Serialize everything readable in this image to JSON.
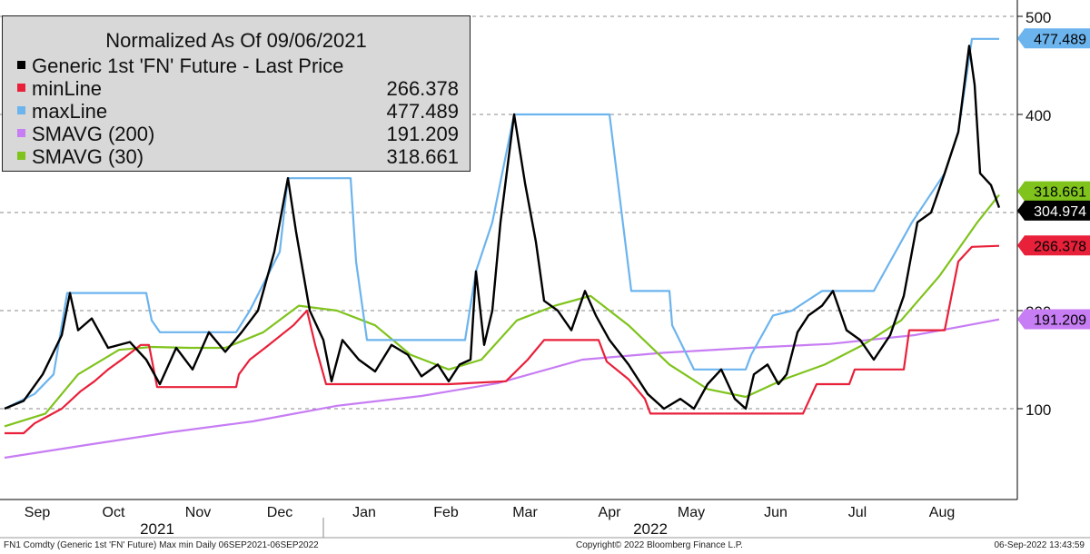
{
  "chart_data": {
    "type": "line",
    "title": "Normalized As Of 09/06/2021",
    "y_ticks": [
      100,
      200,
      300,
      400,
      500
    ],
    "ylim": [
      20,
      530
    ],
    "grid": "dashed horizontal",
    "legend_placement": "top-left",
    "x_month_labels": [
      "Sep",
      "Oct",
      "Nov",
      "Dec",
      "Jan",
      "Feb",
      "Mar",
      "Apr",
      "May",
      "Jun",
      "Jul",
      "Aug"
    ],
    "x_year_labels": [
      "2021",
      "2022"
    ],
    "x_start": "2021-09-06",
    "x_end": "2022-09-06",
    "series": [
      {
        "name": "Generic 1st 'FN' Future - Last Price",
        "last_value": "",
        "label_value": "304.974",
        "color": "#000000",
        "points": [
          [
            "2021-09-06",
            100
          ],
          [
            "2021-09-13",
            108
          ],
          [
            "2021-09-20",
            135
          ],
          [
            "2021-09-27",
            175
          ],
          [
            "2021-09-30",
            218
          ],
          [
            "2021-10-03",
            180
          ],
          [
            "2021-10-08",
            192
          ],
          [
            "2021-10-14",
            162
          ],
          [
            "2021-10-22",
            168
          ],
          [
            "2021-10-28",
            150
          ],
          [
            "2021-11-02",
            125
          ],
          [
            "2021-11-08",
            162
          ],
          [
            "2021-11-14",
            140
          ],
          [
            "2021-11-20",
            178
          ],
          [
            "2021-11-26",
            158
          ],
          [
            "2021-12-02",
            178
          ],
          [
            "2021-12-08",
            200
          ],
          [
            "2021-12-14",
            260
          ],
          [
            "2021-12-19",
            335
          ],
          [
            "2021-12-22",
            280
          ],
          [
            "2021-12-27",
            200
          ],
          [
            "2022-01-01",
            170
          ],
          [
            "2022-01-04",
            128
          ],
          [
            "2022-01-08",
            170
          ],
          [
            "2022-01-14",
            150
          ],
          [
            "2022-01-20",
            138
          ],
          [
            "2022-01-26",
            165
          ],
          [
            "2022-02-01",
            155
          ],
          [
            "2022-02-06",
            133
          ],
          [
            "2022-02-12",
            145
          ],
          [
            "2022-02-16",
            128
          ],
          [
            "2022-02-20",
            145
          ],
          [
            "2022-02-24",
            150
          ],
          [
            "2022-02-26",
            240
          ],
          [
            "2022-03-01",
            165
          ],
          [
            "2022-03-04",
            200
          ],
          [
            "2022-03-07",
            290
          ],
          [
            "2022-03-12",
            400
          ],
          [
            "2022-03-16",
            330
          ],
          [
            "2022-03-20",
            270
          ],
          [
            "2022-03-23",
            210
          ],
          [
            "2022-03-28",
            200
          ],
          [
            "2022-04-02",
            180
          ],
          [
            "2022-04-07",
            220
          ],
          [
            "2022-04-11",
            195
          ],
          [
            "2022-04-16",
            170
          ],
          [
            "2022-04-23",
            145
          ],
          [
            "2022-04-30",
            115
          ],
          [
            "2022-05-06",
            100
          ],
          [
            "2022-05-12",
            110
          ],
          [
            "2022-05-17",
            100
          ],
          [
            "2022-05-22",
            125
          ],
          [
            "2022-05-27",
            140
          ],
          [
            "2022-06-01",
            110
          ],
          [
            "2022-06-05",
            100
          ],
          [
            "2022-06-08",
            135
          ],
          [
            "2022-06-13",
            145
          ],
          [
            "2022-06-17",
            125
          ],
          [
            "2022-06-20",
            135
          ],
          [
            "2022-06-24",
            178
          ],
          [
            "2022-06-28",
            195
          ],
          [
            "2022-07-03",
            205
          ],
          [
            "2022-07-07",
            220
          ],
          [
            "2022-07-12",
            180
          ],
          [
            "2022-07-17",
            170
          ],
          [
            "2022-07-22",
            150
          ],
          [
            "2022-07-28",
            175
          ],
          [
            "2022-08-02",
            215
          ],
          [
            "2022-08-07",
            290
          ],
          [
            "2022-08-12",
            300
          ],
          [
            "2022-08-17",
            340
          ],
          [
            "2022-08-22",
            382
          ],
          [
            "2022-08-26",
            470
          ],
          [
            "2022-08-28",
            430
          ],
          [
            "2022-08-30",
            340
          ],
          [
            "2022-09-03",
            328
          ],
          [
            "2022-09-06",
            305
          ]
        ]
      },
      {
        "name": "minLine",
        "last_value": "266.378",
        "label_value": "266.378",
        "color": "#e8203a",
        "points": [
          [
            "2021-09-06",
            75
          ],
          [
            "2021-09-13",
            75
          ],
          [
            "2021-09-17",
            85
          ],
          [
            "2021-09-27",
            100
          ],
          [
            "2021-10-04",
            118
          ],
          [
            "2021-10-09",
            128
          ],
          [
            "2021-10-14",
            140
          ],
          [
            "2021-10-20",
            152
          ],
          [
            "2021-10-26",
            165
          ],
          [
            "2021-10-29",
            165
          ],
          [
            "2021-11-01",
            122
          ],
          [
            "2021-11-30",
            122
          ],
          [
            "2021-12-01",
            135
          ],
          [
            "2021-12-05",
            150
          ],
          [
            "2021-12-12",
            165
          ],
          [
            "2021-12-21",
            185
          ],
          [
            "2021-12-26",
            200
          ],
          [
            "2021-12-29",
            165
          ],
          [
            "2022-01-02",
            125
          ],
          [
            "2022-02-16",
            125
          ],
          [
            "2022-03-09",
            128
          ],
          [
            "2022-03-17",
            150
          ],
          [
            "2022-03-23",
            170
          ],
          [
            "2022-04-12",
            170
          ],
          [
            "2022-04-15",
            148
          ],
          [
            "2022-04-23",
            130
          ],
          [
            "2022-04-29",
            110
          ],
          [
            "2022-05-01",
            95
          ],
          [
            "2022-06-26",
            95
          ],
          [
            "2022-07-01",
            125
          ],
          [
            "2022-07-13",
            125
          ],
          [
            "2022-07-15",
            140
          ],
          [
            "2022-08-02",
            140
          ],
          [
            "2022-08-04",
            180
          ],
          [
            "2022-08-17",
            180
          ],
          [
            "2022-08-22",
            250
          ],
          [
            "2022-08-27",
            265
          ],
          [
            "2022-09-06",
            266
          ]
        ]
      },
      {
        "name": "maxLine",
        "last_value": "477.489",
        "label_value": "477.489",
        "color": "#6cb4ee",
        "points": [
          [
            "2021-09-06",
            100
          ],
          [
            "2021-09-17",
            115
          ],
          [
            "2021-09-24",
            135
          ],
          [
            "2021-09-29",
            218
          ],
          [
            "2021-10-22",
            218
          ],
          [
            "2021-10-28",
            218
          ],
          [
            "2021-10-30",
            190
          ],
          [
            "2021-11-02",
            178
          ],
          [
            "2021-11-30",
            178
          ],
          [
            "2021-12-05",
            200
          ],
          [
            "2021-12-16",
            260
          ],
          [
            "2021-12-19",
            335
          ],
          [
            "2022-01-11",
            335
          ],
          [
            "2022-01-13",
            250
          ],
          [
            "2022-01-17",
            170
          ],
          [
            "2022-02-22",
            170
          ],
          [
            "2022-02-26",
            240
          ],
          [
            "2022-03-04",
            290
          ],
          [
            "2022-03-12",
            400
          ],
          [
            "2022-04-16",
            400
          ],
          [
            "2022-04-24",
            220
          ],
          [
            "2022-05-08",
            220
          ],
          [
            "2022-05-09",
            185
          ],
          [
            "2022-05-17",
            140
          ],
          [
            "2022-05-25",
            140
          ],
          [
            "2022-06-05",
            140
          ],
          [
            "2022-06-07",
            155
          ],
          [
            "2022-06-15",
            195
          ],
          [
            "2022-06-22",
            200
          ],
          [
            "2022-07-03",
            220
          ],
          [
            "2022-07-22",
            220
          ],
          [
            "2022-08-05",
            290
          ],
          [
            "2022-08-17",
            340
          ],
          [
            "2022-08-22",
            382
          ],
          [
            "2022-08-27",
            477
          ],
          [
            "2022-09-06",
            477
          ]
        ]
      },
      {
        "name": "SMAVG (200)",
        "last_value": "191.209",
        "label_value": "191.209",
        "color": "#c77df3",
        "points": [
          [
            "2021-09-06",
            50
          ],
          [
            "2021-10-06",
            63
          ],
          [
            "2021-11-06",
            76
          ],
          [
            "2021-12-06",
            87
          ],
          [
            "2022-01-06",
            103
          ],
          [
            "2022-02-06",
            113
          ],
          [
            "2022-03-06",
            126
          ],
          [
            "2022-04-06",
            150
          ],
          [
            "2022-05-06",
            157
          ],
          [
            "2022-06-06",
            162
          ],
          [
            "2022-07-06",
            166
          ],
          [
            "2022-08-06",
            175
          ],
          [
            "2022-09-06",
            191
          ]
        ]
      },
      {
        "name": "SMAVG (30)",
        "last_value": "318.661",
        "label_value": "318.661",
        "color": "#7fc31c",
        "points": [
          [
            "2021-09-06",
            82
          ],
          [
            "2021-09-21",
            95
          ],
          [
            "2021-10-03",
            135
          ],
          [
            "2021-10-18",
            160
          ],
          [
            "2021-10-30",
            163
          ],
          [
            "2021-11-13",
            162
          ],
          [
            "2021-11-26",
            162
          ],
          [
            "2021-12-10",
            178
          ],
          [
            "2021-12-23",
            205
          ],
          [
            "2022-01-06",
            200
          ],
          [
            "2022-01-20",
            185
          ],
          [
            "2022-02-02",
            155
          ],
          [
            "2022-02-16",
            140
          ],
          [
            "2022-02-28",
            150
          ],
          [
            "2022-03-13",
            190
          ],
          [
            "2022-03-27",
            205
          ],
          [
            "2022-04-09",
            215
          ],
          [
            "2022-04-23",
            185
          ],
          [
            "2022-05-08",
            145
          ],
          [
            "2022-05-22",
            120
          ],
          [
            "2022-06-05",
            112
          ],
          [
            "2022-06-19",
            130
          ],
          [
            "2022-07-04",
            145
          ],
          [
            "2022-07-18",
            165
          ],
          [
            "2022-08-01",
            190
          ],
          [
            "2022-08-15",
            235
          ],
          [
            "2022-08-29",
            290
          ],
          [
            "2022-09-06",
            318
          ]
        ]
      }
    ]
  },
  "footer": {
    "left": "FN1 Comdty (Generic 1st 'FN' Future) Max min  Daily 06SEP2021-06SEP2022",
    "center": "Copyright© 2022 Bloomberg Finance L.P.",
    "right": "06-Sep-2022 13:43:59"
  }
}
